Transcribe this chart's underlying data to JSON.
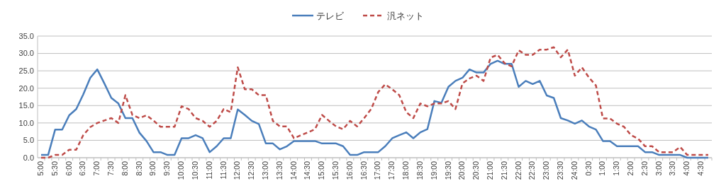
{
  "chart_data": {
    "type": "line",
    "legend": "top",
    "grid": "y",
    "categories": [
      "5:00",
      null,
      "5:30",
      null,
      "6:00",
      null,
      "6:30",
      null,
      "7:00",
      null,
      "7:30",
      null,
      "8:00",
      null,
      "8:30",
      null,
      "9:00",
      null,
      "9:30",
      null,
      "10:00",
      null,
      "10:30",
      null,
      "11:00",
      null,
      "11:30",
      null,
      "12:00",
      null,
      "12:30",
      null,
      "13:00",
      null,
      "13:30",
      null,
      "14:00",
      null,
      "14:30",
      null,
      "15:00",
      null,
      "15:30",
      null,
      "16:00",
      null,
      "16:30",
      null,
      "17:00",
      null,
      "17:30",
      null,
      "18:00",
      null,
      "18:30",
      null,
      "19:00",
      null,
      "19:30",
      null,
      "20:00",
      null,
      "20:30",
      null,
      "21:00",
      null,
      "21:30",
      null,
      "22:00",
      null,
      "22:30",
      null,
      "23:00",
      null,
      "23:30",
      null,
      "24:00",
      null,
      "0:30",
      null,
      "1:00",
      null,
      "1:30",
      null,
      "2:00",
      null,
      "2:30",
      null,
      "3:00",
      null,
      "3:30",
      null,
      "4:00",
      null,
      "4:30",
      null
    ],
    "ylim": [
      0,
      35
    ],
    "yticks": [
      {
        "value": 0,
        "label": "0.0"
      },
      {
        "value": 5,
        "label": "5.0"
      },
      {
        "value": 10,
        "label": "10.0"
      },
      {
        "value": 15,
        "label": "15.0"
      },
      {
        "value": 20,
        "label": "20.0"
      },
      {
        "value": 25,
        "label": "25.0"
      },
      {
        "value": 30,
        "label": "30.0"
      },
      {
        "value": 35,
        "label": "35.0"
      }
    ],
    "series": [
      {
        "name": "テレビ",
        "color": "#4a7ebb",
        "line_style": "solid",
        "values": [
          0.8,
          0.8,
          8.1,
          8.1,
          12.2,
          14.0,
          18.2,
          23.0,
          25.4,
          21.4,
          17.2,
          15.6,
          11.4,
          11.4,
          7.2,
          4.8,
          1.6,
          1.6,
          0.8,
          0.8,
          5.6,
          5.6,
          6.5,
          5.6,
          1.6,
          3.3,
          5.6,
          5.6,
          13.9,
          12.3,
          10.6,
          9.7,
          4.1,
          4.1,
          2.4,
          3.3,
          4.8,
          4.8,
          4.8,
          4.8,
          4.1,
          4.1,
          4.1,
          3.3,
          0.8,
          0.8,
          1.6,
          1.6,
          1.6,
          3.3,
          5.6,
          6.5,
          7.3,
          5.6,
          7.3,
          8.2,
          16.3,
          15.8,
          20.4,
          22.1,
          23.0,
          25.4,
          24.5,
          24.5,
          27.0,
          27.9,
          27.0,
          27.0,
          20.4,
          22.1,
          21.2,
          22.1,
          17.9,
          17.2,
          11.4,
          10.7,
          9.8,
          10.7,
          9.0,
          8.1,
          4.8,
          4.8,
          3.3,
          3.3,
          3.3,
          3.3,
          1.6,
          1.6,
          0.8,
          0.8,
          0.8,
          0.8,
          0,
          0,
          0,
          0
        ]
      },
      {
        "name": "汎ネット",
        "color": "#be4b48",
        "line_style": "dashed",
        "values": [
          0,
          0,
          0.8,
          0.8,
          2.3,
          2.3,
          6.5,
          8.8,
          10.0,
          10.7,
          11.4,
          10.0,
          18.0,
          12.3,
          11.4,
          12.2,
          10.7,
          8.9,
          8.9,
          8.9,
          14.8,
          14.0,
          11.4,
          10.6,
          8.9,
          10.6,
          14.0,
          13.1,
          26.0,
          19.7,
          19.7,
          18.0,
          18.0,
          10.6,
          9.0,
          9.0,
          5.6,
          6.5,
          7.3,
          8.2,
          12.3,
          10.6,
          9.0,
          8.2,
          10.6,
          9.0,
          11.4,
          14.0,
          18.9,
          21.1,
          19.7,
          18.0,
          13.1,
          11.4,
          15.6,
          14.8,
          15.6,
          15.6,
          16.3,
          14.0,
          21.4,
          22.8,
          23.6,
          22.1,
          28.8,
          29.6,
          27.2,
          26.3,
          30.9,
          29.6,
          29.6,
          31.1,
          31.1,
          31.8,
          28.9,
          31.1,
          23.6,
          26.0,
          23.1,
          20.8,
          11.3,
          11.3,
          9.8,
          8.9,
          6.5,
          5.5,
          3.3,
          3.3,
          1.6,
          1.6,
          1.6,
          3.1,
          0.8,
          0.8,
          0.8,
          0.8
        ]
      }
    ]
  }
}
